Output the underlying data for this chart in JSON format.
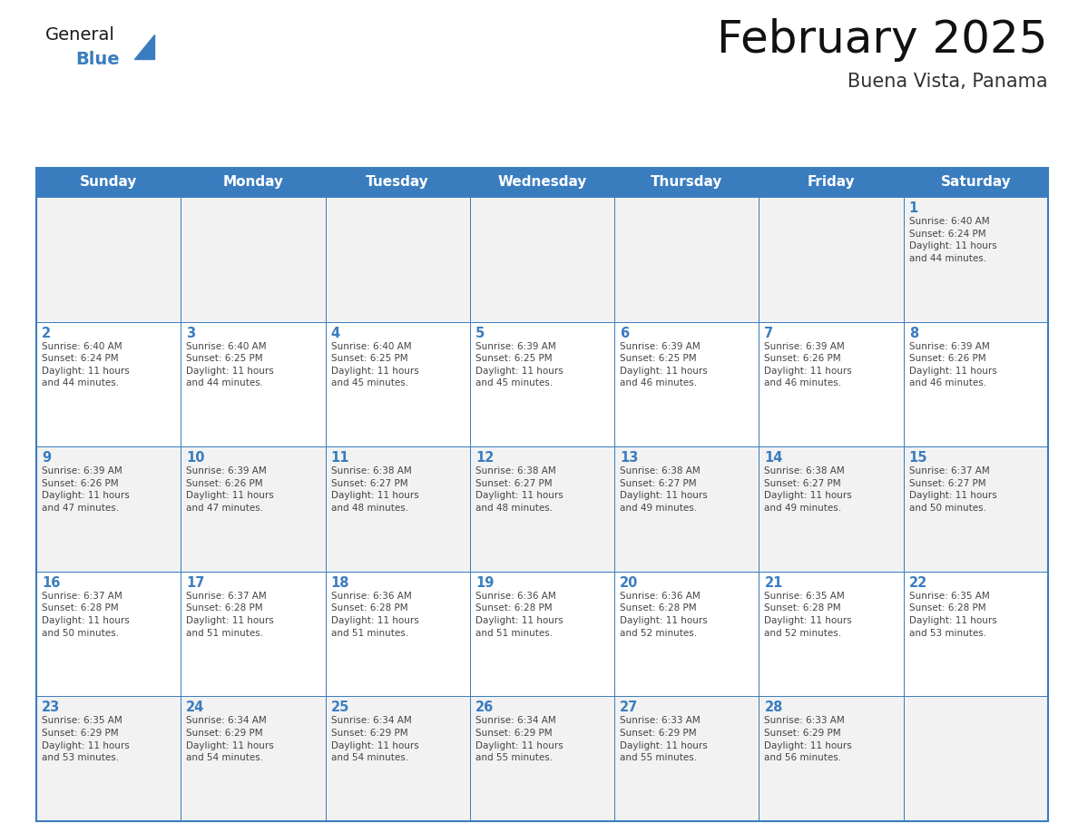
{
  "title": "February 2025",
  "subtitle": "Buena Vista, Panama",
  "header_color": "#3a7dbf",
  "header_text_color": "#ffffff",
  "cell_bg_color": "#ffffff",
  "cell_alt_bg_color": "#f2f2f2",
  "border_color": "#3a7dbf",
  "day_number_color": "#3a7dbf",
  "text_color": "#444444",
  "days_of_week": [
    "Sunday",
    "Monday",
    "Tuesday",
    "Wednesday",
    "Thursday",
    "Friday",
    "Saturday"
  ],
  "weeks": [
    [
      {
        "day": "",
        "info": ""
      },
      {
        "day": "",
        "info": ""
      },
      {
        "day": "",
        "info": ""
      },
      {
        "day": "",
        "info": ""
      },
      {
        "day": "",
        "info": ""
      },
      {
        "day": "",
        "info": ""
      },
      {
        "day": "1",
        "info": "Sunrise: 6:40 AM\nSunset: 6:24 PM\nDaylight: 11 hours\nand 44 minutes."
      }
    ],
    [
      {
        "day": "2",
        "info": "Sunrise: 6:40 AM\nSunset: 6:24 PM\nDaylight: 11 hours\nand 44 minutes."
      },
      {
        "day": "3",
        "info": "Sunrise: 6:40 AM\nSunset: 6:25 PM\nDaylight: 11 hours\nand 44 minutes."
      },
      {
        "day": "4",
        "info": "Sunrise: 6:40 AM\nSunset: 6:25 PM\nDaylight: 11 hours\nand 45 minutes."
      },
      {
        "day": "5",
        "info": "Sunrise: 6:39 AM\nSunset: 6:25 PM\nDaylight: 11 hours\nand 45 minutes."
      },
      {
        "day": "6",
        "info": "Sunrise: 6:39 AM\nSunset: 6:25 PM\nDaylight: 11 hours\nand 46 minutes."
      },
      {
        "day": "7",
        "info": "Sunrise: 6:39 AM\nSunset: 6:26 PM\nDaylight: 11 hours\nand 46 minutes."
      },
      {
        "day": "8",
        "info": "Sunrise: 6:39 AM\nSunset: 6:26 PM\nDaylight: 11 hours\nand 46 minutes."
      }
    ],
    [
      {
        "day": "9",
        "info": "Sunrise: 6:39 AM\nSunset: 6:26 PM\nDaylight: 11 hours\nand 47 minutes."
      },
      {
        "day": "10",
        "info": "Sunrise: 6:39 AM\nSunset: 6:26 PM\nDaylight: 11 hours\nand 47 minutes."
      },
      {
        "day": "11",
        "info": "Sunrise: 6:38 AM\nSunset: 6:27 PM\nDaylight: 11 hours\nand 48 minutes."
      },
      {
        "day": "12",
        "info": "Sunrise: 6:38 AM\nSunset: 6:27 PM\nDaylight: 11 hours\nand 48 minutes."
      },
      {
        "day": "13",
        "info": "Sunrise: 6:38 AM\nSunset: 6:27 PM\nDaylight: 11 hours\nand 49 minutes."
      },
      {
        "day": "14",
        "info": "Sunrise: 6:38 AM\nSunset: 6:27 PM\nDaylight: 11 hours\nand 49 minutes."
      },
      {
        "day": "15",
        "info": "Sunrise: 6:37 AM\nSunset: 6:27 PM\nDaylight: 11 hours\nand 50 minutes."
      }
    ],
    [
      {
        "day": "16",
        "info": "Sunrise: 6:37 AM\nSunset: 6:28 PM\nDaylight: 11 hours\nand 50 minutes."
      },
      {
        "day": "17",
        "info": "Sunrise: 6:37 AM\nSunset: 6:28 PM\nDaylight: 11 hours\nand 51 minutes."
      },
      {
        "day": "18",
        "info": "Sunrise: 6:36 AM\nSunset: 6:28 PM\nDaylight: 11 hours\nand 51 minutes."
      },
      {
        "day": "19",
        "info": "Sunrise: 6:36 AM\nSunset: 6:28 PM\nDaylight: 11 hours\nand 51 minutes."
      },
      {
        "day": "20",
        "info": "Sunrise: 6:36 AM\nSunset: 6:28 PM\nDaylight: 11 hours\nand 52 minutes."
      },
      {
        "day": "21",
        "info": "Sunrise: 6:35 AM\nSunset: 6:28 PM\nDaylight: 11 hours\nand 52 minutes."
      },
      {
        "day": "22",
        "info": "Sunrise: 6:35 AM\nSunset: 6:28 PM\nDaylight: 11 hours\nand 53 minutes."
      }
    ],
    [
      {
        "day": "23",
        "info": "Sunrise: 6:35 AM\nSunset: 6:29 PM\nDaylight: 11 hours\nand 53 minutes."
      },
      {
        "day": "24",
        "info": "Sunrise: 6:34 AM\nSunset: 6:29 PM\nDaylight: 11 hours\nand 54 minutes."
      },
      {
        "day": "25",
        "info": "Sunrise: 6:34 AM\nSunset: 6:29 PM\nDaylight: 11 hours\nand 54 minutes."
      },
      {
        "day": "26",
        "info": "Sunrise: 6:34 AM\nSunset: 6:29 PM\nDaylight: 11 hours\nand 55 minutes."
      },
      {
        "day": "27",
        "info": "Sunrise: 6:33 AM\nSunset: 6:29 PM\nDaylight: 11 hours\nand 55 minutes."
      },
      {
        "day": "28",
        "info": "Sunrise: 6:33 AM\nSunset: 6:29 PM\nDaylight: 11 hours\nand 56 minutes."
      },
      {
        "day": "",
        "info": ""
      }
    ]
  ],
  "logo_text_general": "General",
  "logo_text_blue": "Blue",
  "logo_color_general": "#1a1a1a",
  "logo_color_blue": "#3a7dbf",
  "logo_triangle_color": "#3a7dbf"
}
